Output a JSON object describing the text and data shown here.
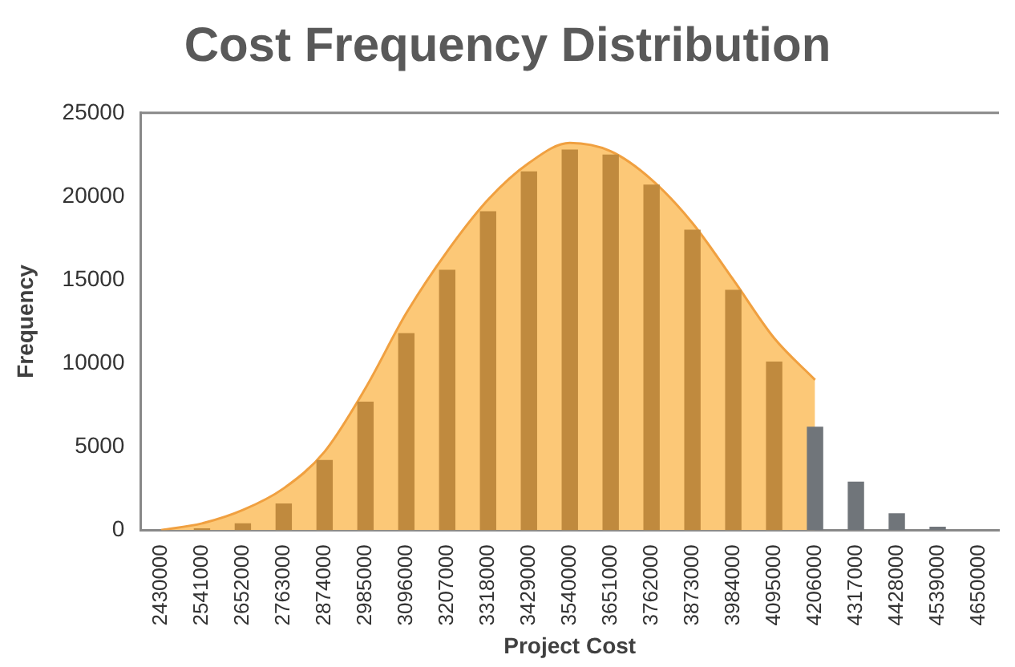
{
  "chart_data": {
    "type": "bar",
    "title": "Cost Frequency Distribution",
    "xlabel": "Project Cost",
    "ylabel": "Frequency",
    "categories": [
      "2430000",
      "2541000",
      "2652000",
      "2763000",
      "2874000",
      "2985000",
      "3096000",
      "3207000",
      "3318000",
      "3429000",
      "3540000",
      "3651000",
      "3762000",
      "3873000",
      "3984000",
      "4095000",
      "4206000",
      "4317000",
      "4428000",
      "4539000",
      "4650000"
    ],
    "series": [
      {
        "type": "area",
        "color": "#fcc877",
        "values": [
          0,
          400,
          1200,
          2500,
          4700,
          8500,
          13000,
          16700,
          19800,
          22000,
          23200,
          22700,
          21000,
          18400,
          15000,
          11500,
          9000,
          null,
          null,
          null,
          null
        ]
      },
      {
        "colors": [
          "#c08a3e",
          "#c08a3e",
          "#c08a3e",
          "#c08a3e",
          "#c08a3e",
          "#c08a3e",
          "#c08a3e",
          "#c08a3e",
          "#c08a3e",
          "#c08a3e",
          "#c08a3e",
          "#c08a3e",
          "#c08a3e",
          "#c08a3e",
          "#c08a3e",
          "#c08a3e",
          "#70757a",
          "#70757a",
          "#70757a",
          "#70757a",
          "#70757a"
        ],
        "values": [
          0,
          100,
          400,
          1600,
          4200,
          7700,
          11800,
          15600,
          19100,
          21500,
          22800,
          22500,
          20700,
          18000,
          14400,
          10100,
          6200,
          2900,
          1000,
          200,
          0
        ]
      }
    ],
    "ylim": [
      0,
      25000
    ],
    "yticks": [
      0,
      5000,
      10000,
      15000,
      20000,
      25000
    ],
    "grid": false,
    "legend": false
  }
}
